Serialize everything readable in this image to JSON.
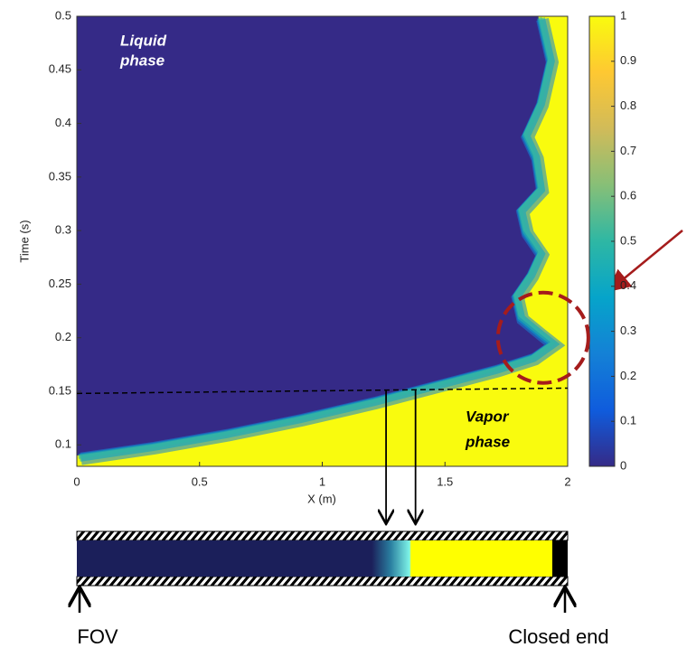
{
  "chart_data": {
    "type": "contour",
    "xlabel": "X (m)",
    "ylabel": "Time (s)",
    "xlim": [
      0,
      2
    ],
    "ylim": [
      0.08,
      0.5
    ],
    "xticks": [
      0,
      0.5,
      1,
      1.5,
      2
    ],
    "yticks": [
      0.1,
      0.15,
      0.2,
      0.25,
      0.3,
      0.35,
      0.4,
      0.45,
      0.5
    ],
    "interface": {
      "x": [
        0,
        0.3,
        0.6,
        0.9,
        1.2,
        1.5,
        1.7,
        1.85,
        1.93,
        1.88,
        1.8,
        1.78,
        1.84,
        1.88,
        1.82,
        1.8,
        1.88,
        1.86,
        1.82,
        1.88,
        1.92,
        1.88
      ],
      "y": [
        0.09,
        0.1,
        0.112,
        0.126,
        0.142,
        0.16,
        0.172,
        0.183,
        0.196,
        0.205,
        0.22,
        0.24,
        0.26,
        0.28,
        0.3,
        0.32,
        0.34,
        0.37,
        0.39,
        0.42,
        0.46,
        0.5
      ]
    },
    "liquid_color": "#352a87",
    "vapor_color": "#f9fb0e",
    "colormap": [
      "#352a87",
      "#0f5cdd",
      "#1481d6",
      "#06a4ca",
      "#2eb7a4",
      "#87bf77",
      "#d1bb59",
      "#fec832",
      "#f9fb0e"
    ],
    "clim": [
      0,
      1
    ],
    "cticks": [
      0,
      0.1,
      0.2,
      0.3,
      0.4,
      0.5,
      0.6,
      0.7,
      0.8,
      0.9,
      1
    ],
    "dashed_line": {
      "x": [
        0,
        2
      ],
      "y": [
        0.148,
        0.153
      ]
    },
    "arrows_x": [
      1.26,
      1.38
    ],
    "circle": {
      "x": 1.9,
      "y": 0.2,
      "color": "#a51c1c"
    },
    "liquid_label": [
      "Liquid",
      "phase"
    ],
    "vapor_label": [
      "Vapor",
      "phase"
    ],
    "pipe_labels": {
      "left": "FOV",
      "right": "Closed end"
    }
  }
}
